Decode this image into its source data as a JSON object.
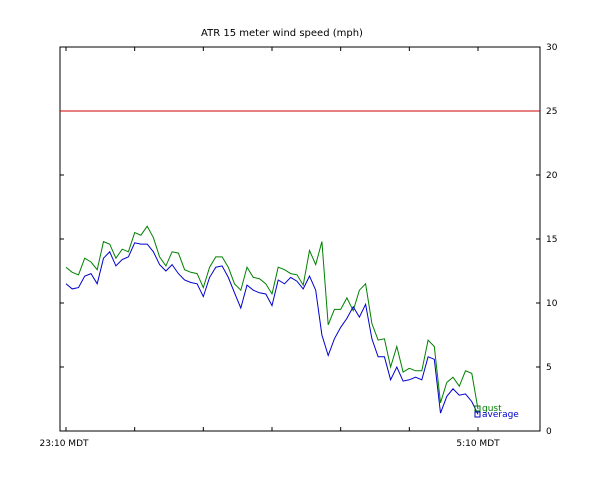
{
  "chart_data": {
    "type": "line",
    "title": "ATR 15 meter wind speed (mph)",
    "xlabel": "",
    "ylabel": "",
    "x_tick_labels": [
      "23:10 MDT",
      "5:10 MDT"
    ],
    "y_ticks": [
      0,
      5,
      10,
      15,
      20,
      25,
      30
    ],
    "ylim": [
      0,
      30
    ],
    "y_axis_side": "right",
    "grid": false,
    "legend_placement": "bottom-right",
    "threshold": {
      "value": 25,
      "color": "#cc0000"
    },
    "series": [
      {
        "name": "gust",
        "legend_label": "gust",
        "color": "#008000",
        "values": [
          12.8,
          12.4,
          12.2,
          13.5,
          13.2,
          12.6,
          14.8,
          14.6,
          13.5,
          14.2,
          14.0,
          15.5,
          15.3,
          16.0,
          15.1,
          13.6,
          12.9,
          14.0,
          13.9,
          12.6,
          12.4,
          12.3,
          11.2,
          12.8,
          13.6,
          13.6,
          12.8,
          11.5,
          11.0,
          12.8,
          12.0,
          11.9,
          11.5,
          10.7,
          12.8,
          12.6,
          12.3,
          12.2,
          11.4,
          14.1,
          13.0,
          14.8,
          8.3,
          9.5,
          9.5,
          10.4,
          9.4,
          11.0,
          11.5,
          8.4,
          7.1,
          7.2,
          5.0,
          6.6,
          4.6,
          4.9,
          4.7,
          4.7,
          7.1,
          6.6,
          2.2,
          3.8,
          4.2,
          3.5,
          4.7,
          4.5,
          1.7
        ]
      },
      {
        "name": "average",
        "legend_label": "average",
        "color": "#0000cc",
        "values": [
          11.5,
          11.1,
          11.2,
          12.1,
          12.3,
          11.5,
          13.5,
          14.0,
          12.9,
          13.4,
          13.6,
          14.7,
          14.6,
          14.6,
          14.0,
          13.0,
          12.5,
          13.0,
          12.3,
          11.8,
          11.6,
          11.5,
          10.5,
          12.0,
          12.8,
          12.9,
          12.0,
          10.8,
          9.6,
          11.4,
          11.0,
          10.8,
          10.7,
          9.8,
          11.8,
          11.5,
          12.0,
          11.7,
          11.1,
          12.1,
          11.0,
          7.5,
          5.9,
          7.2,
          8.1,
          8.8,
          9.7,
          8.9,
          9.9,
          7.2,
          5.8,
          5.8,
          4.0,
          5.0,
          3.9,
          4.0,
          4.2,
          4.0,
          5.8,
          5.6,
          1.4,
          2.7,
          3.3,
          2.8,
          2.9,
          2.3,
          1.3
        ]
      }
    ]
  }
}
